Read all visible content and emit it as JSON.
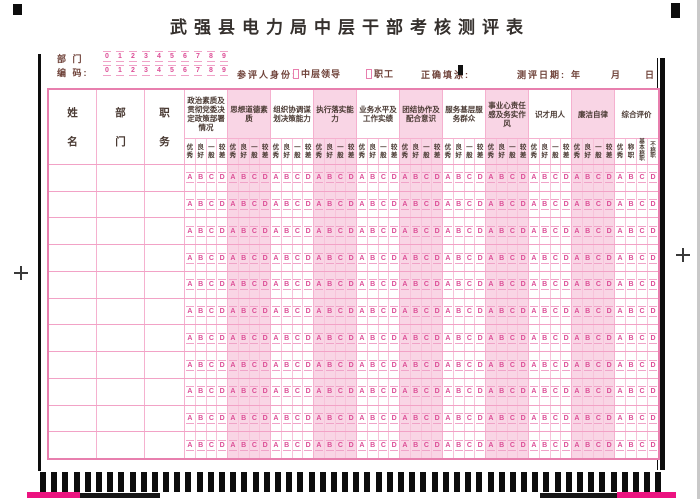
{
  "page": {
    "title": "武强县电力局中层干部考核测评表"
  },
  "top_fields": {
    "dept_label": "部 门",
    "code_label": "编 码:",
    "digits": [
      "0",
      "1",
      "2",
      "3",
      "4",
      "5",
      "6",
      "7",
      "8",
      "9"
    ],
    "identity_label": "参评人身份:",
    "identity_options": [
      "中层领导",
      "职工"
    ],
    "fill_label": "正确填涂:",
    "date_label": "测评日期:",
    "date_units": [
      "年",
      "月",
      "日"
    ]
  },
  "table": {
    "info_columns": [
      "姓名",
      "部门",
      "职务"
    ],
    "rating_letters": [
      "A",
      "B",
      "C",
      "D"
    ],
    "row_count": 11,
    "groups": [
      {
        "label": "政治素质及贯彻党委决定政策部署情况",
        "ratings": [
          "优秀",
          "良好",
          "一般",
          "较差"
        ],
        "shaded": false
      },
      {
        "label": "思想道德素质",
        "ratings": [
          "优秀",
          "良好",
          "一般",
          "较差"
        ],
        "shaded": true
      },
      {
        "label": "组织协调谋划决策能力",
        "ratings": [
          "优秀",
          "良好",
          "一般",
          "较差"
        ],
        "shaded": false
      },
      {
        "label": "执行落实能力",
        "ratings": [
          "优秀",
          "良好",
          "一般",
          "较差"
        ],
        "shaded": true
      },
      {
        "label": "业务水平及工作实绩",
        "ratings": [
          "优秀",
          "良好",
          "一般",
          "较差"
        ],
        "shaded": false
      },
      {
        "label": "团结协作及配合意识",
        "ratings": [
          "优秀",
          "良好",
          "一般",
          "较差"
        ],
        "shaded": true
      },
      {
        "label": "服务基层服务群众",
        "ratings": [
          "优秀",
          "良好",
          "一般",
          "较差"
        ],
        "shaded": false
      },
      {
        "label": "事业心责任感及务实作风",
        "ratings": [
          "优秀",
          "良好",
          "一般",
          "较差"
        ],
        "shaded": true
      },
      {
        "label": "识才用人",
        "ratings": [
          "优秀",
          "良好",
          "一般",
          "较差"
        ],
        "shaded": false
      },
      {
        "label": "廉洁自律",
        "ratings": [
          "优秀",
          "良好",
          "一般",
          "较差"
        ],
        "shaded": true
      },
      {
        "label": "综合评价",
        "ratings": [
          "优秀",
          "称职",
          "基本称职",
          "不称职"
        ],
        "shaded": false
      }
    ]
  },
  "machine_marks": {
    "bottom_timing_mark_count": 56
  },
  "colors": {
    "grid_pink": "#ee93bb",
    "cell_pink": "#f5b1cf",
    "shade_pink": "#f9d5e5",
    "bubble_magenta": "#dc4f97",
    "label_maroon": "#6e4138",
    "strip_magenta": "#ec1380",
    "mark_black": "#0d0d0d"
  }
}
